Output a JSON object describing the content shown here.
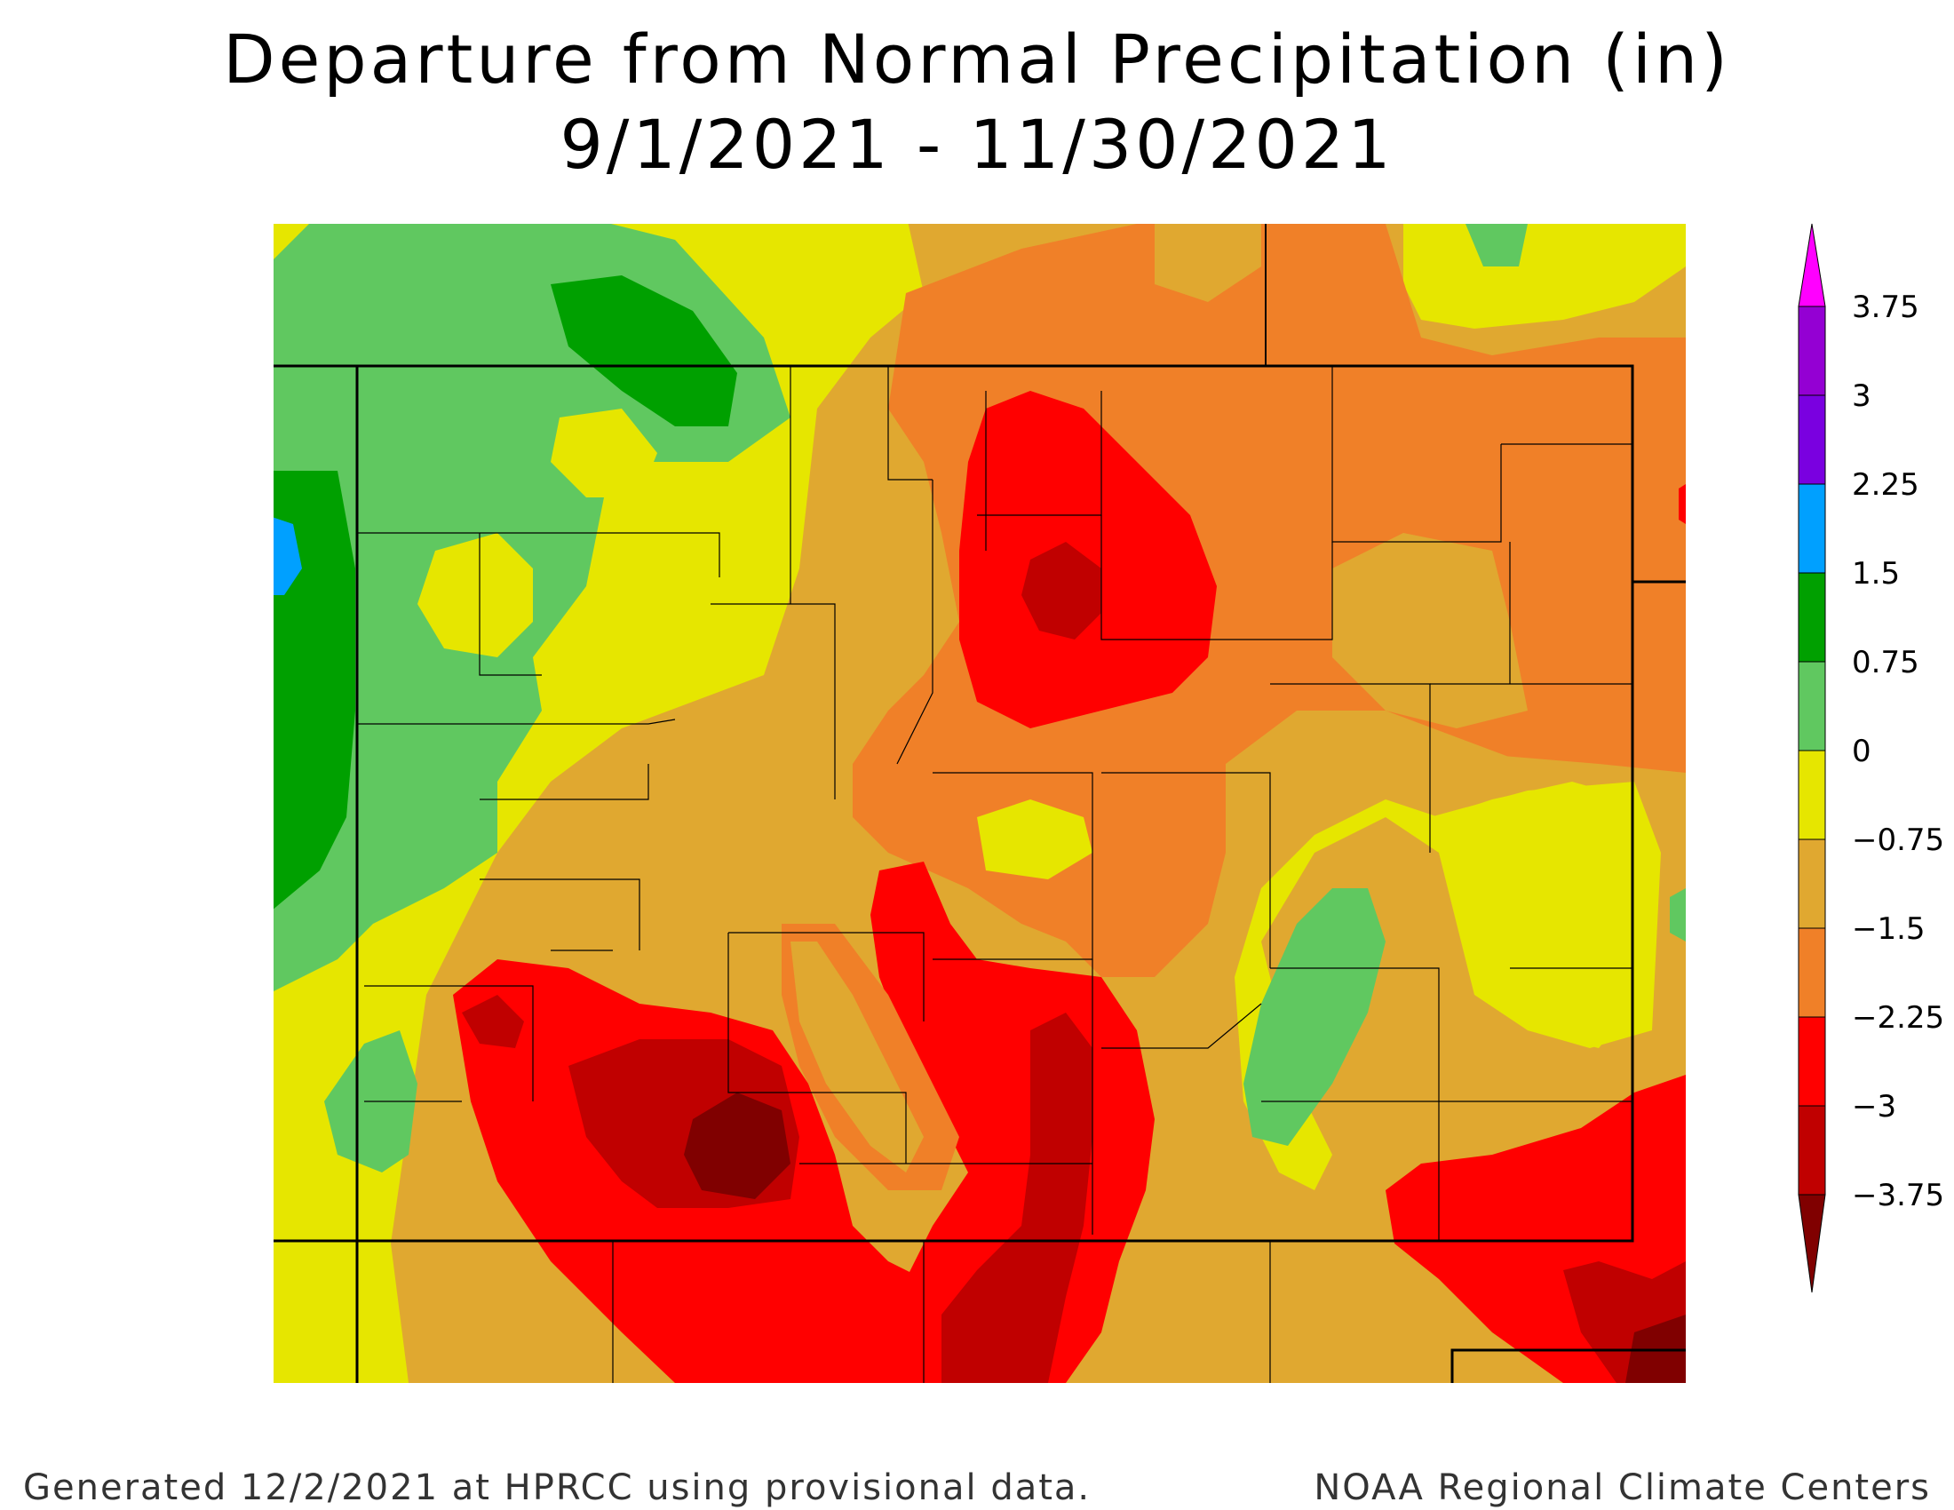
{
  "header": {
    "title": "Departure from Normal Precipitation (in)",
    "date_range": "9/1/2021 - 11/30/2021"
  },
  "legend": {
    "labels": [
      "3.75",
      "3",
      "2.25",
      "1.5",
      "0.75",
      "0",
      "−0.75",
      "−1.5",
      "−2.25",
      "−3",
      "−3.75"
    ],
    "colors": [
      "#ff00ff",
      "#9400d3",
      "#7a00e0",
      "#00a0ff",
      "#00a000",
      "#60c860",
      "#e6e600",
      "#e0a830",
      "#f08028",
      "#ff0000",
      "#c00000",
      "#800000"
    ]
  },
  "map": {
    "region": "Colorado",
    "palette": {
      "green_dark": "#00a000",
      "green": "#60c860",
      "blue": "#00a0ff",
      "yellow": "#e6e600",
      "tan": "#e0a830",
      "orange": "#f08028",
      "red": "#ff0000",
      "dark_red": "#c00000",
      "maroon": "#800000"
    }
  },
  "footer": {
    "left": "Generated 12/2/2021 at HPRCC using provisional data.",
    "right": "NOAA Regional Climate Centers"
  }
}
